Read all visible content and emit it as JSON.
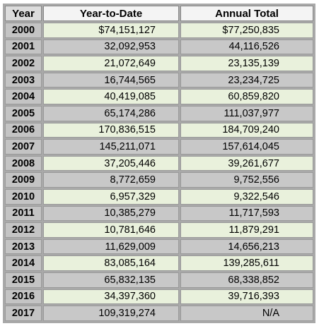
{
  "table": {
    "header": [
      "Year",
      "Year-to-Date",
      "Annual  Total"
    ],
    "rows": [
      [
        "2000",
        "$74,151,127",
        "$77,250,835"
      ],
      [
        "2001",
        "32,092,953",
        "44,116,526"
      ],
      [
        "2002",
        "21,072,649",
        "23,135,139"
      ],
      [
        "2003",
        "16,744,565",
        "23,234,725"
      ],
      [
        "2004",
        "40,419,085",
        "60,859,820"
      ],
      [
        "2005",
        "65,174,286",
        "111,037,977"
      ],
      [
        "2006",
        "170,836,515",
        "184,709,240"
      ],
      [
        "2007",
        "145,211,071",
        "157,614,045"
      ],
      [
        "2008",
        "37,205,446",
        "39,261,677"
      ],
      [
        "2009",
        "8,772,659",
        "9,752,556"
      ],
      [
        "2010",
        "6,957,329",
        "9,322,546"
      ],
      [
        "2011",
        "10,385,279",
        "11,717,593"
      ],
      [
        "2012",
        "10,781,646",
        "11,879,291"
      ],
      [
        "2013",
        "11,629,009",
        "14,656,213"
      ],
      [
        "2014",
        "83,085,164",
        "139,285,611"
      ],
      [
        "2015",
        "65,832,135",
        "68,338,852"
      ],
      [
        "2016",
        "34,397,360",
        "39,716,393"
      ],
      [
        "2017",
        "109,319,274",
        "N/A"
      ]
    ]
  }
}
